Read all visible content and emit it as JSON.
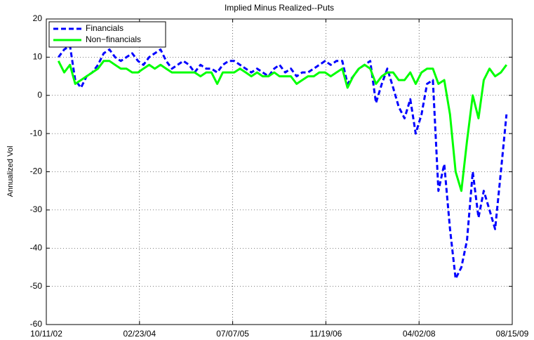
{
  "chart_data": {
    "type": "line",
    "title": "Implied Minus Realized--Puts",
    "y_label": "Annualized Vol",
    "x": [
      "12/15/02",
      "01/15/03",
      "02/15/03",
      "03/15/03",
      "04/15/03",
      "05/15/03",
      "06/15/03",
      "07/15/03",
      "08/15/03",
      "09/15/03",
      "10/15/03",
      "11/15/03",
      "12/15/03",
      "01/15/04",
      "02/15/04",
      "03/15/04",
      "04/15/04",
      "05/15/04",
      "06/15/04",
      "07/15/04",
      "08/15/04",
      "09/15/04",
      "10/15/04",
      "11/15/04",
      "12/15/04",
      "01/15/05",
      "02/15/05",
      "03/15/05",
      "04/15/05",
      "05/15/05",
      "06/15/05",
      "07/15/05",
      "08/15/05",
      "09/15/05",
      "10/15/05",
      "11/15/05",
      "12/15/05",
      "01/15/06",
      "02/15/06",
      "03/15/06",
      "04/15/06",
      "05/15/06",
      "06/15/06",
      "07/15/06",
      "08/15/06",
      "09/15/06",
      "10/15/06",
      "11/15/06",
      "12/15/06",
      "01/15/07",
      "02/15/07",
      "03/15/07",
      "04/15/07",
      "05/15/07",
      "06/15/07",
      "07/15/07",
      "08/15/07",
      "09/15/07",
      "10/15/07",
      "11/15/07",
      "12/15/07",
      "01/15/08",
      "02/15/08",
      "03/15/08",
      "04/15/08",
      "05/15/08",
      "06/15/08",
      "07/15/08",
      "08/15/08",
      "09/15/08",
      "10/15/08",
      "11/15/08",
      "12/15/08",
      "01/15/09",
      "02/15/09",
      "03/15/09",
      "04/15/09",
      "05/15/09",
      "06/15/09",
      "07/15/09"
    ],
    "series": [
      {
        "name": "Financials",
        "color": "#0000ff",
        "dash": true,
        "values": [
          10,
          12,
          13,
          4,
          2,
          5,
          6,
          8,
          11,
          12,
          10,
          9,
          10,
          11,
          9,
          8,
          10,
          11,
          12,
          9,
          7,
          8,
          9,
          8,
          6,
          8,
          7,
          7,
          6,
          8,
          9,
          9,
          8,
          7,
          6,
          7,
          6,
          5,
          7,
          8,
          6,
          7,
          5,
          6,
          6,
          7,
          8,
          9,
          8,
          9,
          9,
          3,
          5,
          7,
          8,
          9,
          -2,
          3,
          7,
          2,
          -3,
          -6,
          -1,
          -10,
          -5,
          3,
          4,
          -25,
          -18,
          -35,
          -48,
          -45,
          -38,
          -20,
          -32,
          -25,
          -30,
          -35,
          -20,
          -5
        ]
      },
      {
        "name": "Non−financials",
        "color": "#00ff00",
        "dash": false,
        "values": [
          9,
          6,
          8,
          3,
          4,
          5,
          6,
          7,
          9,
          9,
          8,
          7,
          7,
          6,
          6,
          7,
          8,
          7,
          8,
          7,
          6,
          6,
          6,
          6,
          6,
          5,
          6,
          6,
          3,
          6,
          6,
          6,
          7,
          6,
          5,
          6,
          5,
          5,
          6,
          5,
          5,
          5,
          3,
          4,
          5,
          5,
          6,
          6,
          5,
          6,
          7,
          2,
          5,
          7,
          8,
          7,
          3,
          5,
          6,
          6,
          4,
          4,
          6,
          3,
          6,
          7,
          7,
          3,
          4,
          -5,
          -20,
          -25,
          -12,
          0,
          -6,
          4,
          7,
          5,
          6,
          8
        ]
      }
    ],
    "xlim": [
      "10/11/02",
      "08/15/09"
    ],
    "xticks": [
      "10/11/02",
      "02/23/04",
      "07/07/05",
      "11/19/06",
      "04/02/08",
      "08/15/09"
    ],
    "ylim": [
      -60,
      20
    ],
    "yticks": [
      -60,
      -50,
      -40,
      -30,
      -20,
      -10,
      0,
      10,
      20
    ],
    "grid": true,
    "legend": "upper left"
  }
}
